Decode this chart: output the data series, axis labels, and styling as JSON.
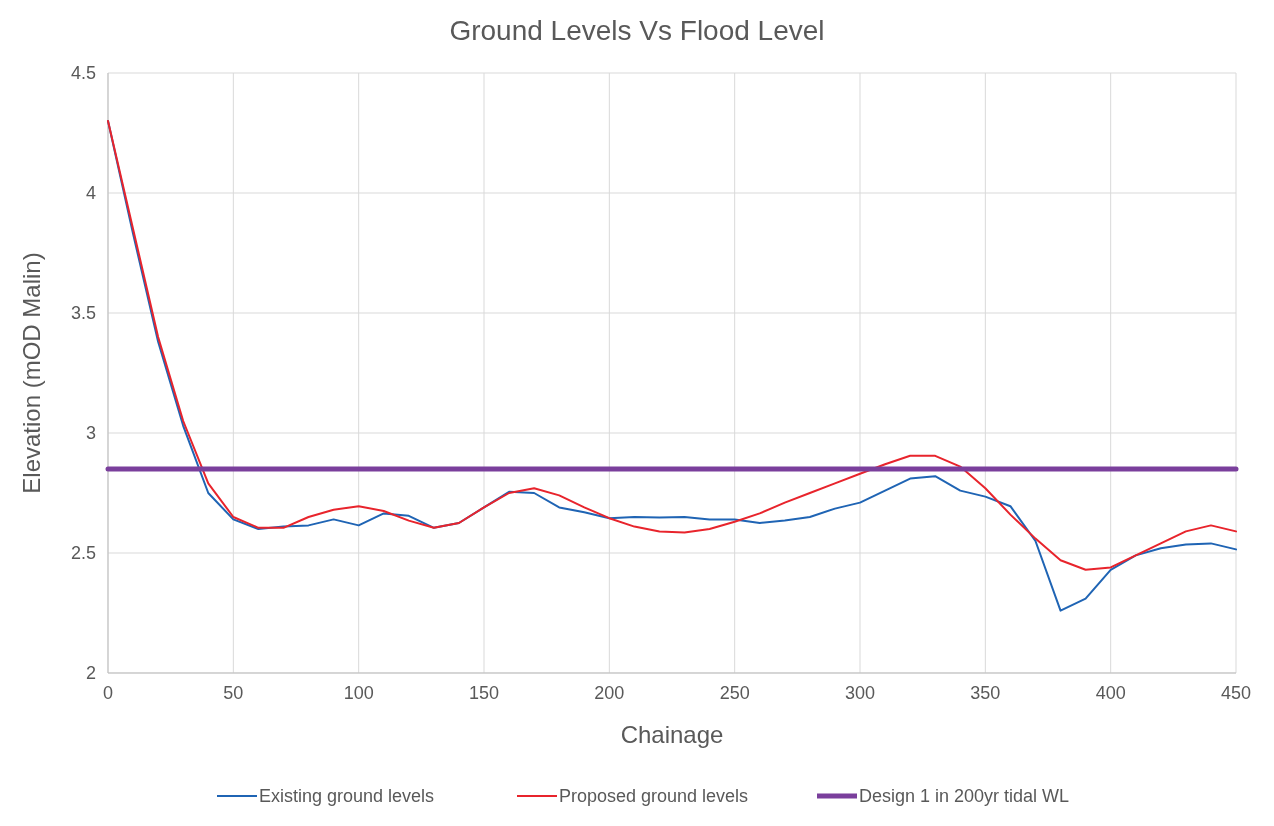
{
  "chart_data": {
    "type": "line",
    "title": "Ground Levels Vs Flood Level",
    "xlabel": "Chainage",
    "ylabel": "Elevation (mOD Malin)",
    "x": [
      0,
      10,
      20,
      30,
      40,
      50,
      60,
      70,
      80,
      90,
      100,
      110,
      120,
      130,
      140,
      150,
      160,
      170,
      180,
      190,
      200,
      210,
      220,
      230,
      240,
      250,
      260,
      270,
      280,
      290,
      300,
      310,
      320,
      330,
      340,
      350,
      360,
      370,
      380,
      390,
      400,
      410,
      420,
      430,
      440,
      450
    ],
    "series": [
      {
        "name": "Existing ground levels",
        "color": "#1f64b4",
        "values": [
          4.3,
          3.83,
          3.38,
          3.03,
          2.75,
          2.64,
          2.6,
          2.61,
          2.615,
          2.64,
          2.615,
          2.665,
          2.655,
          2.605,
          2.625,
          2.69,
          2.755,
          2.75,
          2.69,
          2.67,
          2.645,
          2.65,
          2.648,
          2.65,
          2.64,
          2.64,
          2.625,
          2.635,
          2.65,
          2.685,
          2.71,
          2.76,
          2.81,
          2.82,
          2.76,
          2.735,
          2.695,
          2.55,
          2.26,
          2.31,
          2.43,
          2.49,
          2.52,
          2.535,
          2.54,
          2.515
        ]
      },
      {
        "name": "Proposed ground levels",
        "color": "#e8242c",
        "values": [
          4.3,
          3.85,
          3.4,
          3.05,
          2.79,
          2.65,
          2.605,
          2.605,
          2.65,
          2.68,
          2.695,
          2.675,
          2.635,
          2.605,
          2.625,
          2.69,
          2.75,
          2.77,
          2.74,
          2.69,
          2.645,
          2.61,
          2.59,
          2.585,
          2.6,
          2.63,
          2.665,
          2.71,
          2.75,
          2.79,
          2.83,
          2.87,
          2.905,
          2.905,
          2.86,
          2.77,
          2.66,
          2.56,
          2.47,
          2.43,
          2.44,
          2.49,
          2.54,
          2.59,
          2.615,
          2.59
        ]
      },
      {
        "name": "Design 1 in 200yr tidal WL",
        "color": "#7a3f9c",
        "x": [
          0,
          450
        ],
        "values": [
          2.85,
          2.85
        ]
      }
    ],
    "xlim": [
      0,
      450
    ],
    "xticks": [
      0,
      50,
      100,
      150,
      200,
      250,
      300,
      350,
      400,
      450
    ],
    "ylim": [
      2,
      4.5
    ],
    "yticks": [
      2,
      2.5,
      3,
      3.5,
      4,
      4.5
    ],
    "grid": true,
    "legend": "bottom"
  }
}
